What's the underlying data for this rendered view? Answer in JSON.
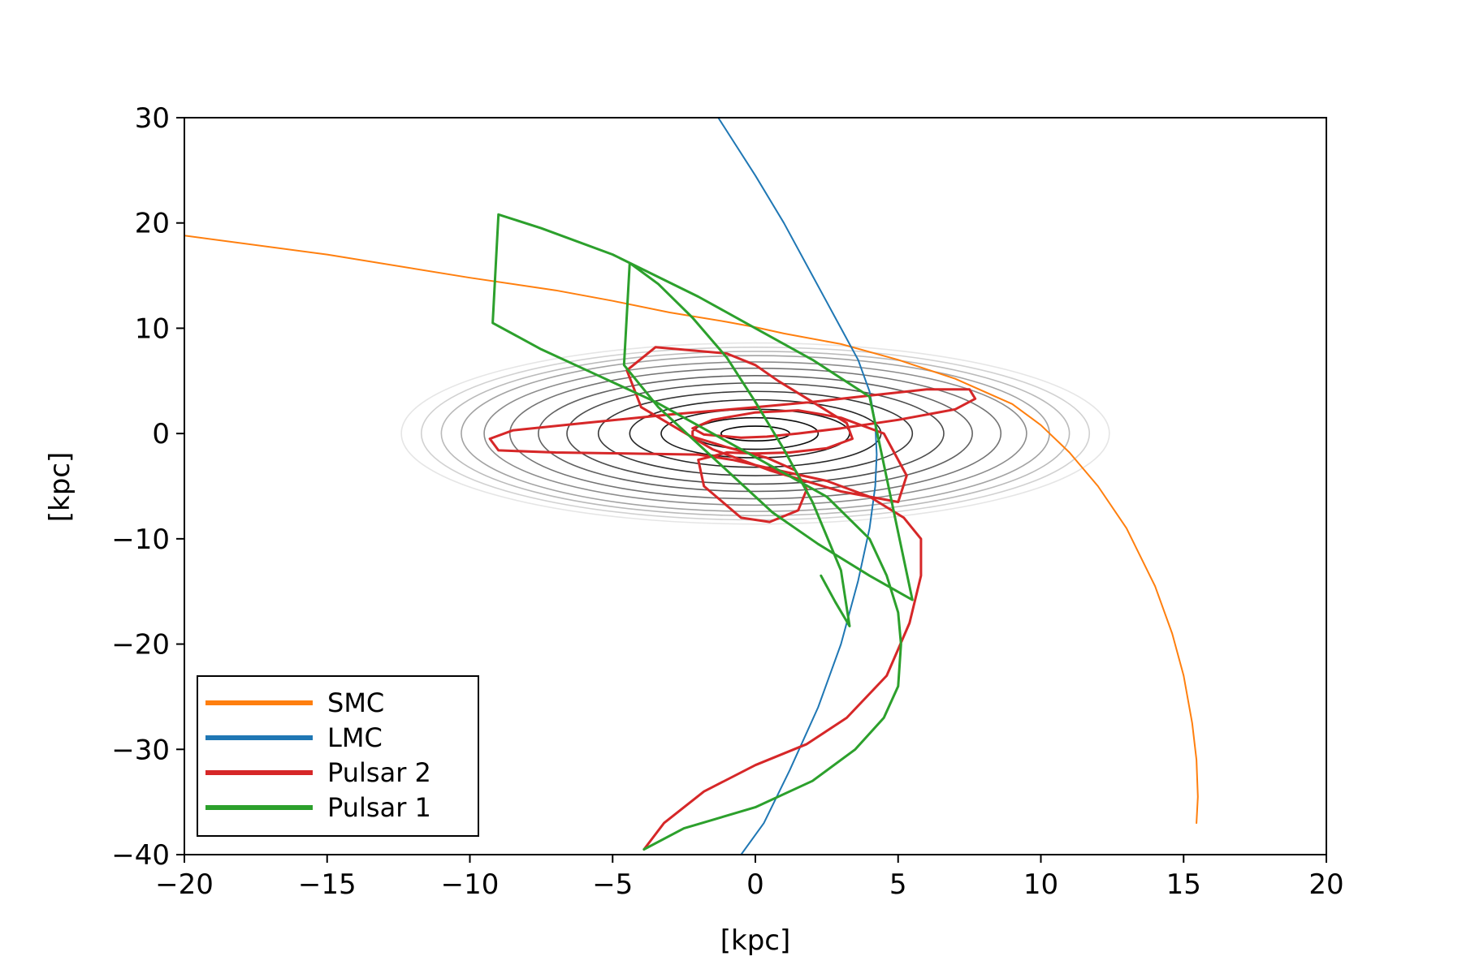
{
  "chart_data": {
    "type": "line",
    "xlabel": "[kpc]",
    "ylabel": "[kpc]",
    "xlim": [
      -20,
      20
    ],
    "ylim": [
      -40,
      30
    ],
    "xticks": [
      -20,
      -15,
      -10,
      -5,
      0,
      5,
      10,
      15,
      20
    ],
    "xtick_labels": [
      "−20",
      "−15",
      "−10",
      "−5",
      "0",
      "5",
      "10",
      "15",
      "20"
    ],
    "yticks": [
      -40,
      -30,
      -20,
      -10,
      0,
      10,
      20,
      30
    ],
    "ytick_labels": [
      "−40",
      "−30",
      "−20",
      "−10",
      "0",
      "10",
      "20",
      "30"
    ],
    "grid": false,
    "legend_position": "lower-left",
    "series": [
      {
        "name": "SMC",
        "color": "#ff7f0e",
        "x": [
          -20,
          -15,
          -10,
          -7,
          -5,
          -3,
          -1,
          0,
          1,
          3,
          5,
          7,
          9,
          10,
          11,
          12,
          13,
          14,
          14.6,
          15,
          15.3,
          15.45,
          15.5,
          15.45
        ],
        "y": [
          18.8,
          17,
          14.8,
          13.6,
          12.6,
          11.5,
          10.6,
          10.1,
          9.5,
          8.5,
          7,
          5.2,
          2.8,
          0.8,
          -1.8,
          -5,
          -9,
          -14.5,
          -19,
          -23,
          -27.5,
          -31,
          -34.5,
          -37
        ]
      },
      {
        "name": "LMC",
        "color": "#1f77b4",
        "x": [
          -1.3,
          0,
          1,
          2,
          3,
          3.6,
          4,
          4.2,
          4.25,
          4.2,
          4,
          3.6,
          3,
          2.2,
          1.2,
          0.3,
          -0.5
        ],
        "y": [
          30,
          24.5,
          20,
          15,
          10,
          7,
          4,
          1,
          -2,
          -5,
          -9,
          -14,
          -20,
          -26,
          -32,
          -37,
          -40
        ]
      },
      {
        "name": "Pulsar 2",
        "color": "#d62728",
        "x": [
          -3.9,
          -3.2,
          -1.8,
          0,
          1.8,
          3.2,
          4.6,
          5.4,
          5.8,
          5.8,
          5.2,
          4,
          2.5,
          0.8,
          -0.8,
          -2,
          -4.5,
          -7,
          -9,
          -9.3,
          -8.5,
          -6,
          -3,
          0,
          2,
          4,
          6,
          7.5,
          7.7,
          7,
          5,
          3,
          1.5,
          0.4,
          -0.5,
          -1.8,
          -2.2,
          -1.5,
          0,
          1.5,
          3,
          4.5,
          5.3,
          5,
          3,
          0.5,
          -1.5,
          -4,
          -4.5,
          -3.5,
          -1,
          0,
          0.8,
          2,
          3.2,
          3.4,
          2.5,
          1.2,
          0,
          -1,
          -2,
          -1.8,
          -0.5,
          0.5,
          1.5,
          1.8,
          1.4,
          0.4,
          -1,
          -2.2,
          -2.2
        ],
        "y": [
          -39.5,
          -37,
          -34,
          -31.5,
          -29.5,
          -27,
          -23,
          -18,
          -13.5,
          -10,
          -8,
          -6,
          -4.5,
          -3.5,
          -2.5,
          -2,
          -1.9,
          -1.8,
          -1.6,
          -0.5,
          0.3,
          1,
          1.8,
          2.5,
          3,
          3.6,
          4.2,
          4.2,
          3.3,
          2.3,
          1.3,
          0.5,
          0,
          -0.3,
          -0.4,
          -0.1,
          0.5,
          1.3,
          2,
          2.2,
          1.5,
          0,
          -4,
          -6.5,
          -5.5,
          -3.5,
          -1.5,
          2.5,
          6,
          8.2,
          7.6,
          6.5,
          5,
          3,
          1,
          -0.5,
          -1.4,
          -1.8,
          -1.9,
          -1.8,
          -2.5,
          -5,
          -8,
          -8.4,
          -7.3,
          -5.3,
          -3.5,
          -2.3,
          -1.3,
          -0.3,
          0.2
        ]
      },
      {
        "name": "Pulsar 1",
        "color": "#2ca02c",
        "x": [
          -3.9,
          -2.5,
          0,
          2,
          3.5,
          4.5,
          5,
          5.1,
          5,
          4.6,
          4,
          2.5,
          0.5,
          -1.5,
          -3.5,
          -5.5,
          -7.5,
          -9.2,
          -9,
          -7.5,
          -5,
          -2,
          0,
          2,
          4,
          5.5,
          5.3,
          4,
          2.2,
          0.6,
          -0.8,
          -2,
          -3.4,
          -4.6,
          -4.4,
          -3.4,
          -2.2,
          -1,
          0,
          1,
          2,
          3,
          3.3,
          2.8,
          2.3
        ],
        "y": [
          -39.5,
          -37.5,
          -35.5,
          -33,
          -30,
          -27,
          -24,
          -20,
          -17,
          -13.5,
          -10,
          -6,
          -3,
          0,
          3,
          5.5,
          8,
          10.5,
          20.8,
          19.5,
          17,
          13,
          10,
          7,
          3.5,
          -15.8,
          -15.5,
          -13.5,
          -10.5,
          -7.5,
          -4,
          -1,
          2.5,
          6.5,
          16.2,
          14.2,
          11,
          7.2,
          3,
          -1.5,
          -6.5,
          -13,
          -18.3,
          -16,
          -13.5
        ]
      }
    ],
    "contours": {
      "color": "#000000",
      "center": [
        0,
        0
      ],
      "semi_major": [
        1.2,
        2.2,
        3.3,
        4.4,
        5.5,
        6.6,
        7.6,
        8.6,
        9.5,
        10.3,
        11.0,
        11.7,
        12.4
      ],
      "semi_minor": [
        0.7,
        1.5,
        2.3,
        3.2,
        4.0,
        4.8,
        5.5,
        6.2,
        6.8,
        7.4,
        7.8,
        8.2,
        8.6
      ],
      "opacity": [
        1.0,
        0.95,
        0.9,
        0.85,
        0.78,
        0.7,
        0.62,
        0.55,
        0.45,
        0.36,
        0.27,
        0.18,
        0.1
      ]
    },
    "legend_order": [
      "SMC",
      "LMC",
      "Pulsar 2",
      "Pulsar 1"
    ]
  }
}
